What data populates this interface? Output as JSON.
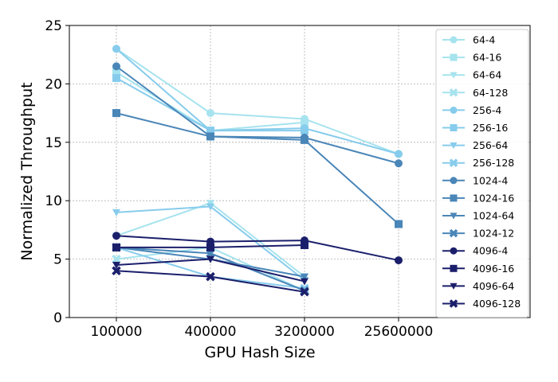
{
  "chart_data": {
    "type": "line",
    "title": "",
    "xlabel": "GPU Hash Size",
    "ylabel": "Normalized Throughput",
    "categories": [
      "100000",
      "400000",
      "3200000",
      "25600000"
    ],
    "ylim": [
      0,
      25
    ],
    "yticks": [
      0,
      5,
      10,
      15,
      20,
      25
    ],
    "grid": true,
    "legend_position": "right",
    "series": [
      {
        "name": "64-4",
        "color": "#a6e3ee",
        "marker": "circle",
        "values": [
          23.0,
          17.5,
          17.0,
          14.0
        ]
      },
      {
        "name": "64-16",
        "color": "#a6e3ee",
        "marker": "square",
        "values": [
          21.0,
          16.0,
          16.7,
          null
        ]
      },
      {
        "name": "64-64",
        "color": "#a6e3ee",
        "marker": "triangle-down",
        "values": [
          7.0,
          9.8,
          3.5,
          null
        ]
      },
      {
        "name": "64-128",
        "color": "#a6e3ee",
        "marker": "x",
        "values": [
          5.0,
          6.0,
          2.3,
          null
        ]
      },
      {
        "name": "256-4",
        "color": "#87ccec",
        "marker": "circle",
        "values": [
          23.0,
          16.0,
          16.2,
          14.0
        ]
      },
      {
        "name": "256-16",
        "color": "#87ccec",
        "marker": "square",
        "values": [
          20.5,
          16.0,
          16.0,
          null
        ]
      },
      {
        "name": "256-64",
        "color": "#87ccec",
        "marker": "triangle-down",
        "values": [
          9.0,
          9.5,
          3.2,
          null
        ]
      },
      {
        "name": "256-128",
        "color": "#87ccec",
        "marker": "x",
        "values": [
          6.0,
          3.5,
          2.5,
          null
        ]
      },
      {
        "name": "1024-4",
        "color": "#4a86b8",
        "marker": "circle",
        "values": [
          21.5,
          15.5,
          15.4,
          13.2
        ]
      },
      {
        "name": "1024-16",
        "color": "#4a86b8",
        "marker": "square",
        "values": [
          17.5,
          15.5,
          15.2,
          8.0
        ]
      },
      {
        "name": "1024-64",
        "color": "#4a86b8",
        "marker": "triangle-down",
        "values": [
          6.0,
          5.0,
          3.5,
          null
        ]
      },
      {
        "name": "1024-12",
        "color": "#4a86b8",
        "marker": "x",
        "values": [
          6.0,
          5.5,
          2.3,
          null
        ]
      },
      {
        "name": "4096-4",
        "color": "#1b1f6b",
        "marker": "circle",
        "values": [
          7.0,
          6.5,
          6.6,
          4.9
        ]
      },
      {
        "name": "4096-16",
        "color": "#1b1f6b",
        "marker": "square",
        "values": [
          6.0,
          6.0,
          6.2,
          null
        ]
      },
      {
        "name": "4096-64",
        "color": "#1b1f6b",
        "marker": "triangle-down",
        "values": [
          4.5,
          5.0,
          3.1,
          null
        ]
      },
      {
        "name": "4096-128",
        "color": "#1b1f6b",
        "marker": "x",
        "values": [
          4.0,
          3.5,
          2.2,
          null
        ]
      }
    ]
  }
}
